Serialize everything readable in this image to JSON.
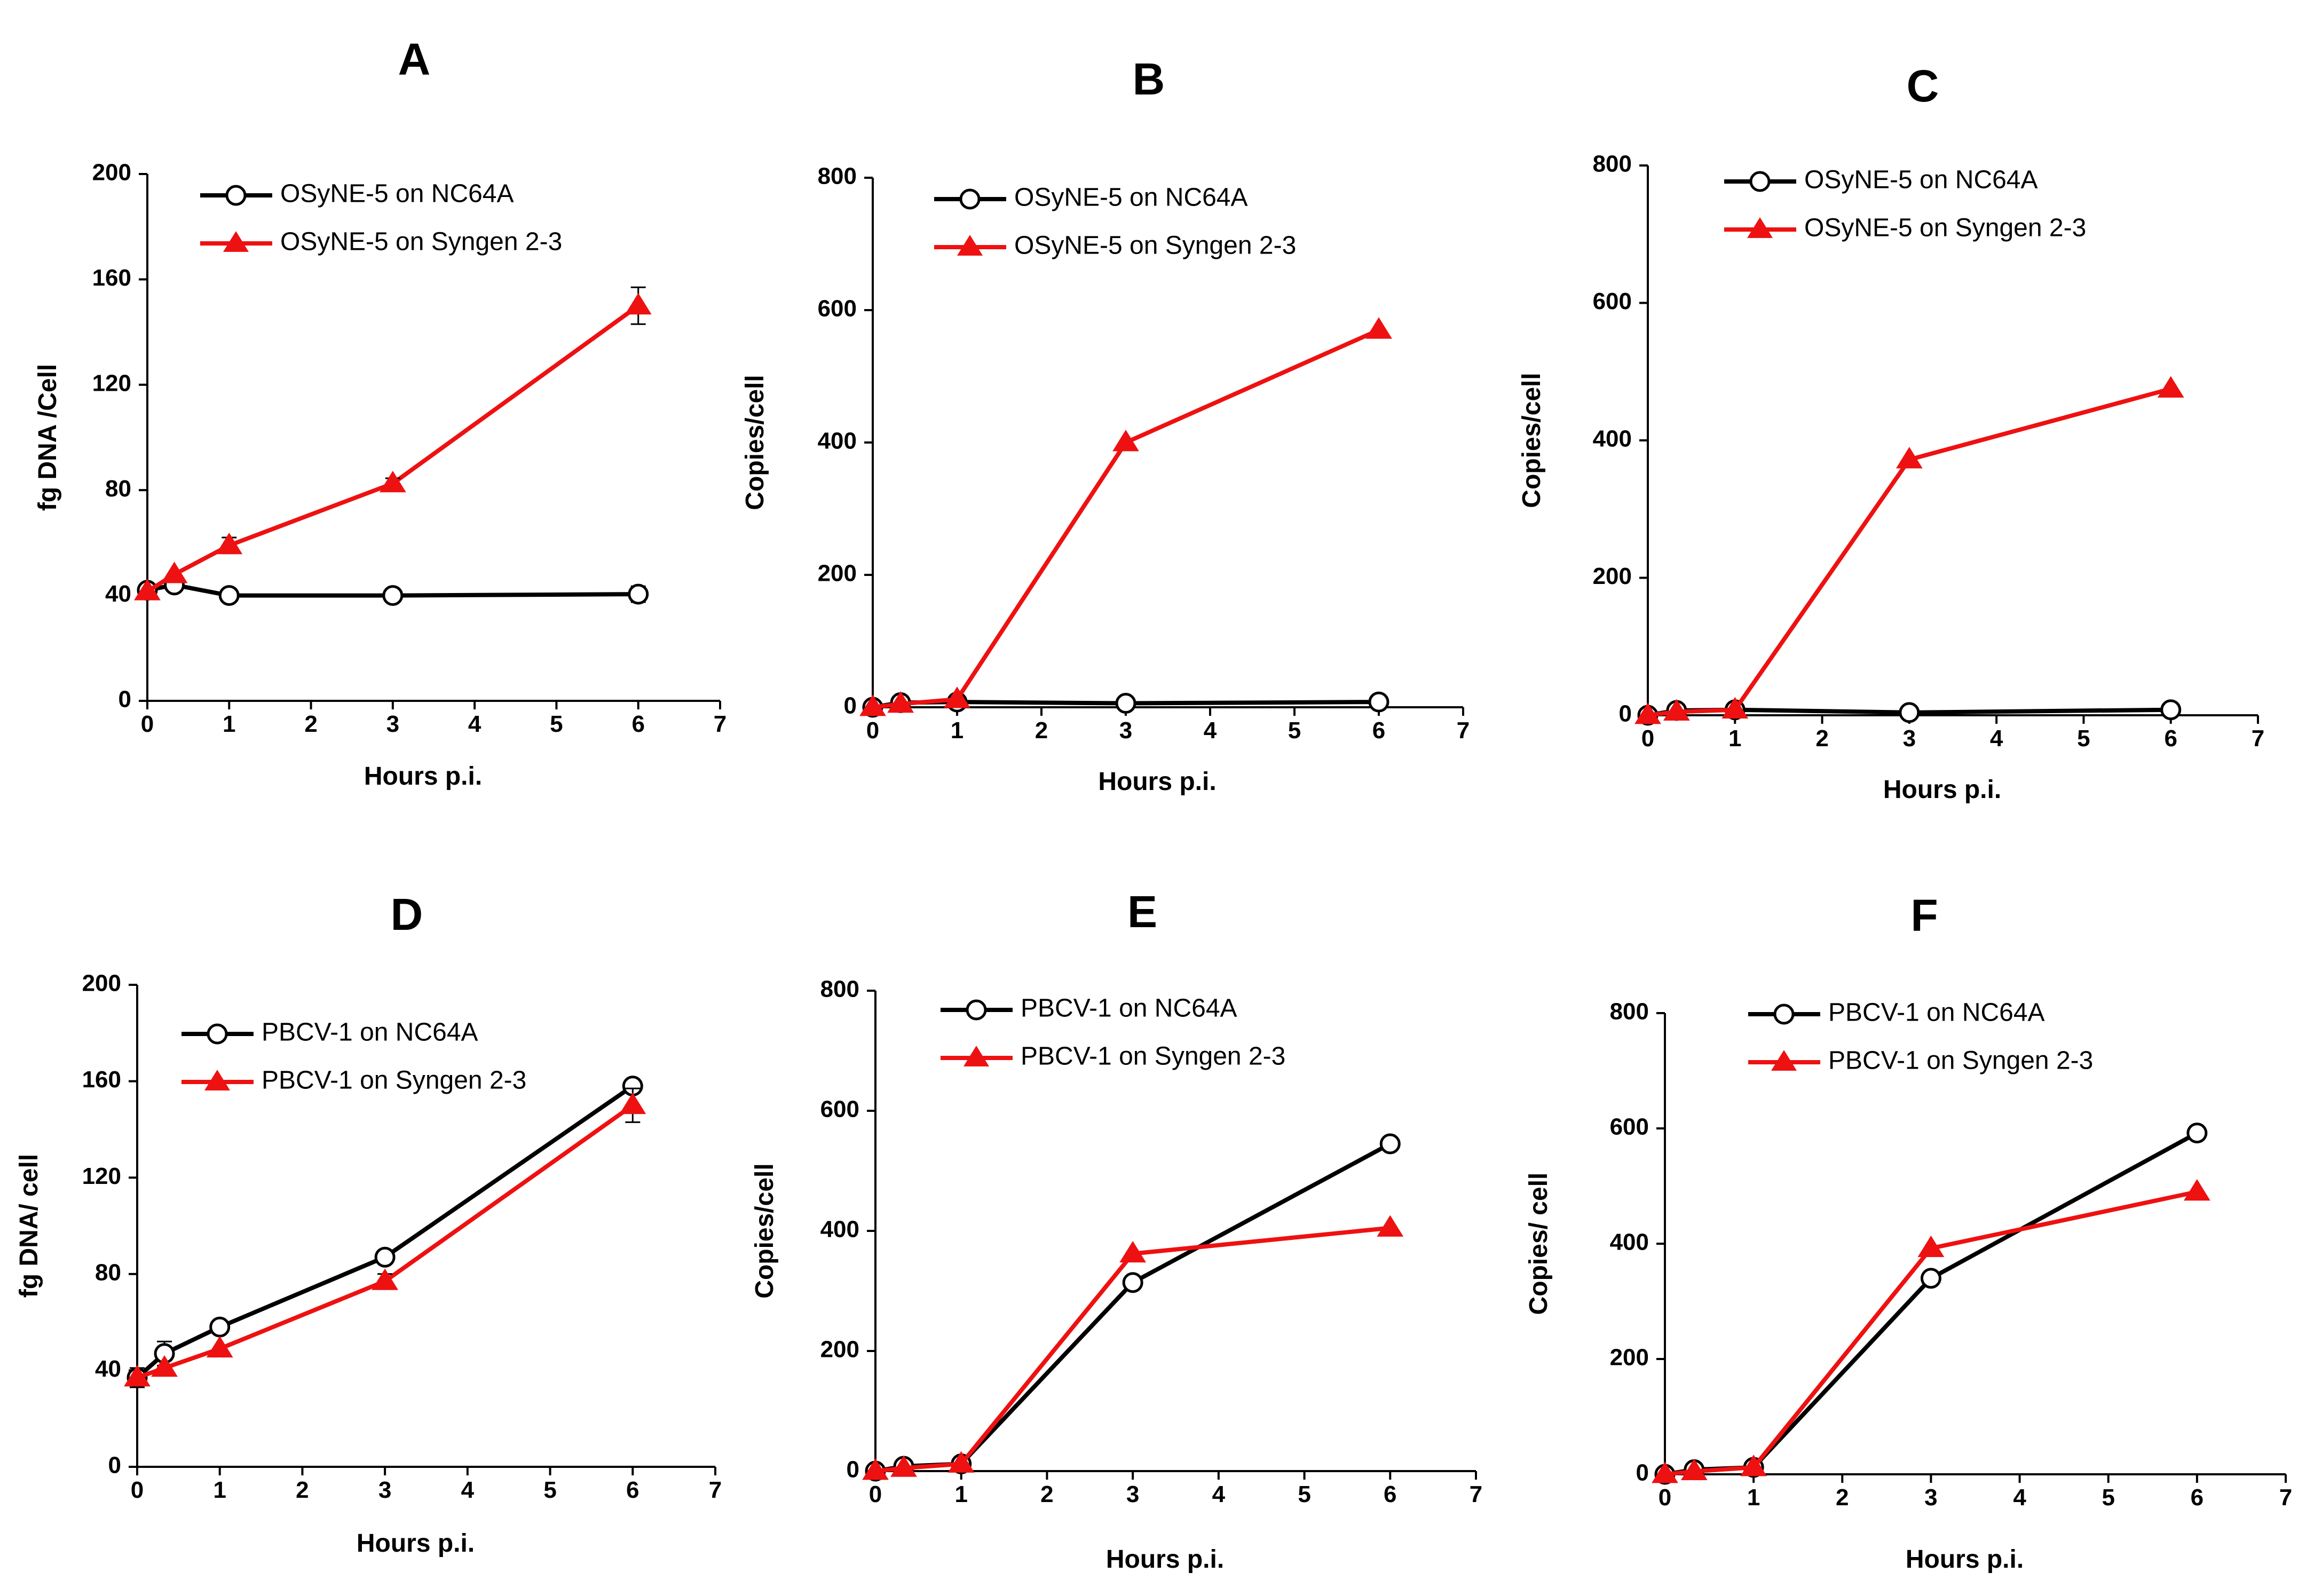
{
  "colors": {
    "series_a": "#000000",
    "series_b": "#ee1111"
  },
  "chart_data": [
    {
      "type": "line",
      "panel": "A",
      "title": "A",
      "xlabel": "Hours p.i.",
      "ylabel": "fg DNA /Cell",
      "xlim": [
        0,
        7
      ],
      "ylim": [
        0,
        200
      ],
      "xticks": [
        0,
        1,
        2,
        3,
        4,
        5,
        6,
        7
      ],
      "yticks": [
        0,
        40,
        80,
        120,
        160,
        200
      ],
      "grid": false,
      "legend_position": "top-left",
      "x": [
        0,
        0.33,
        1,
        3,
        6
      ],
      "series": [
        {
          "name": "OSyNE-5 on NC64A",
          "marker": "circle",
          "color": "#000000",
          "values": [
            42,
            44,
            40,
            40,
            40.5
          ],
          "errors": [
            0,
            0,
            0,
            0,
            3
          ]
        },
        {
          "name": "OSyNE-5 on Syngen 2-3",
          "marker": "triangle",
          "color": "#ee1111",
          "values": [
            41.5,
            48,
            59,
            82.5,
            150
          ],
          "errors": [
            0,
            0,
            3,
            2,
            7
          ]
        }
      ]
    },
    {
      "type": "line",
      "panel": "B",
      "title": "B",
      "xlabel": "Hours p.i.",
      "ylabel": "Copies/cell",
      "xlim": [
        0,
        7
      ],
      "ylim": [
        0,
        800
      ],
      "xticks": [
        0,
        1,
        2,
        3,
        4,
        5,
        6,
        7
      ],
      "yticks": [
        0,
        200,
        400,
        600,
        800
      ],
      "grid": false,
      "legend_position": "top-left",
      "x": [
        0,
        0.33,
        1,
        3,
        6
      ],
      "series": [
        {
          "name": "OSyNE-5 on NC64A",
          "marker": "circle",
          "color": "#000000",
          "values": [
            0,
            7,
            8,
            6,
            8
          ],
          "errors": [
            0,
            0,
            0,
            0,
            0
          ]
        },
        {
          "name": "OSyNE-5 on Syngen 2-3",
          "marker": "triangle",
          "color": "#ee1111",
          "values": [
            0,
            5,
            12,
            400,
            570
          ],
          "errors": [
            0,
            0,
            0,
            0,
            0
          ]
        }
      ]
    },
    {
      "type": "line",
      "panel": "C",
      "title": "C",
      "xlabel": "Hours p.i.",
      "ylabel": "Copies/cell",
      "xlim": [
        0,
        7
      ],
      "ylim": [
        0,
        800
      ],
      "xticks": [
        0,
        1,
        2,
        3,
        4,
        5,
        6,
        7
      ],
      "yticks": [
        0,
        200,
        400,
        600,
        800
      ],
      "grid": false,
      "legend_position": "top-left",
      "x": [
        0,
        0.33,
        1,
        3,
        6
      ],
      "series": [
        {
          "name": "OSyNE-5 on NC64A",
          "marker": "circle",
          "color": "#000000",
          "values": [
            0,
            7,
            8,
            4,
            8
          ],
          "errors": [
            0,
            0,
            0,
            0,
            0
          ]
        },
        {
          "name": "OSyNE-5 on Syngen 2-3",
          "marker": "triangle",
          "color": "#ee1111",
          "values": [
            0,
            5,
            8,
            372,
            475
          ],
          "errors": [
            0,
            0,
            0,
            0,
            0
          ]
        }
      ]
    },
    {
      "type": "line",
      "panel": "D",
      "title": "D",
      "xlabel": "Hours p.i.",
      "ylabel": "fg DNA/ cell",
      "xlim": [
        0,
        7
      ],
      "ylim": [
        0,
        200
      ],
      "xticks": [
        0,
        1,
        2,
        3,
        4,
        5,
        6,
        7
      ],
      "yticks": [
        0,
        40,
        80,
        120,
        160,
        200
      ],
      "grid": false,
      "legend_position": "top-left",
      "x": [
        0,
        0.33,
        1,
        3,
        6
      ],
      "series": [
        {
          "name": "PBCV-1 on NC64A",
          "marker": "circle",
          "color": "#000000",
          "values": [
            37,
            47,
            58,
            87,
            158
          ],
          "errors": [
            4,
            5,
            2,
            2,
            2
          ]
        },
        {
          "name": "PBCV-1 on Syngen 2-3",
          "marker": "triangle",
          "color": "#ee1111",
          "values": [
            37,
            41,
            49,
            77,
            150
          ],
          "errors": [
            0,
            0,
            0,
            3,
            7
          ]
        }
      ]
    },
    {
      "type": "line",
      "panel": "E",
      "title": "E",
      "xlabel": "Hours p.i.",
      "ylabel": "Copies/cell",
      "xlim": [
        0,
        7
      ],
      "ylim": [
        0,
        800
      ],
      "xticks": [
        0,
        1,
        2,
        3,
        4,
        5,
        6,
        7
      ],
      "yticks": [
        0,
        200,
        400,
        600,
        800
      ],
      "grid": false,
      "legend_position": "top-left",
      "x": [
        0,
        0.33,
        1,
        3,
        6
      ],
      "series": [
        {
          "name": "PBCV-1 on NC64A",
          "marker": "circle",
          "color": "#000000",
          "values": [
            0,
            8,
            12,
            314,
            545
          ],
          "errors": [
            0,
            0,
            0,
            0,
            0
          ]
        },
        {
          "name": "PBCV-1 on Syngen 2-3",
          "marker": "triangle",
          "color": "#ee1111",
          "values": [
            0,
            5,
            12,
            362,
            405
          ],
          "errors": [
            0,
            0,
            0,
            0,
            0
          ]
        }
      ]
    },
    {
      "type": "line",
      "panel": "F",
      "title": "F",
      "xlabel": "Hours p.i.",
      "ylabel": "Copies/ cell",
      "xlim": [
        0,
        7
      ],
      "ylim": [
        0,
        800
      ],
      "xticks": [
        0,
        1,
        2,
        3,
        4,
        5,
        6,
        7
      ],
      "yticks": [
        0,
        200,
        400,
        600,
        800
      ],
      "grid": false,
      "legend_position": "top-left",
      "x": [
        0,
        0.33,
        1,
        3,
        6
      ],
      "series": [
        {
          "name": "PBCV-1 on NC64A",
          "marker": "circle",
          "color": "#000000",
          "values": [
            0,
            8,
            12,
            340,
            592
          ],
          "errors": [
            0,
            0,
            0,
            0,
            0
          ]
        },
        {
          "name": "PBCV-1 on Syngen 2-3",
          "marker": "triangle",
          "color": "#ee1111",
          "values": [
            0,
            5,
            12,
            392,
            490
          ],
          "errors": [
            0,
            0,
            0,
            0,
            0
          ]
        }
      ]
    }
  ]
}
